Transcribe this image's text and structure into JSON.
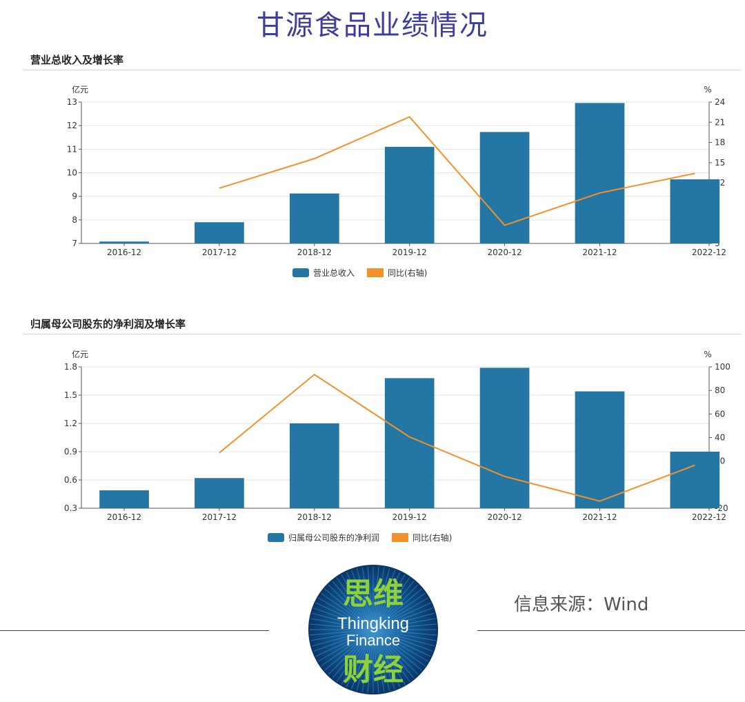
{
  "page_title": "甘源食品业绩情况",
  "colors": {
    "bar": "#2477a4",
    "line": "#f5902a",
    "title": "#3d3d9e"
  },
  "chart_data": [
    {
      "type": "bar",
      "title": "营业总收入及增长率",
      "categories": [
        "2016-12",
        "2017-12",
        "2018-12",
        "2019-12",
        "2020-12",
        "2021-12",
        "2022-12"
      ],
      "ylabel": "亿元",
      "y2label": "%",
      "ylim": [
        7,
        13
      ],
      "yticks": [
        "7",
        "8",
        "9",
        "10",
        "11",
        "12",
        "13"
      ],
      "y2lim": [
        3,
        24
      ],
      "y2ticks": [
        "3",
        "6",
        "9",
        "12",
        "15",
        "18",
        "21",
        "24"
      ],
      "series": [
        {
          "name": "营业总收入",
          "type": "bar",
          "axis": "left",
          "values": [
            7.08,
            7.9,
            9.12,
            11.1,
            11.73,
            12.96,
            9.72
          ]
        },
        {
          "name": "同比(右轴)",
          "type": "line",
          "axis": "right",
          "values": [
            null,
            11.2,
            15.6,
            21.8,
            5.7,
            10.5,
            13.4
          ]
        }
      ]
    },
    {
      "type": "bar",
      "title": "归属母公司股东的净利润及增长率",
      "categories": [
        "2016-12",
        "2017-12",
        "2018-12",
        "2019-12",
        "2020-12",
        "2021-12",
        "2022-12"
      ],
      "ylabel": "亿元",
      "y2label": "%",
      "ylim": [
        0.3,
        1.8
      ],
      "yticks": [
        "0.3",
        "0.6",
        "0.9",
        "1.2",
        "1.5",
        "1.8"
      ],
      "y2lim": [
        -20,
        100
      ],
      "y2ticks": [
        "-20",
        "0",
        "20",
        "40",
        "60",
        "80",
        "100"
      ],
      "series": [
        {
          "name": "归属母公司股东的净利润",
          "type": "bar",
          "axis": "left",
          "values": [
            0.49,
            0.62,
            1.2,
            1.68,
            1.79,
            1.54,
            0.9
          ]
        },
        {
          "name": "同比(右轴)",
          "type": "line",
          "axis": "right",
          "values": [
            null,
            27,
            93.5,
            40.5,
            7,
            -14,
            16.5
          ]
        }
      ]
    }
  ],
  "logo": {
    "line1": "思维",
    "line2": "Thingking",
    "line3": "Finance",
    "line4": "财经"
  },
  "source_text": "信息来源：Wind"
}
